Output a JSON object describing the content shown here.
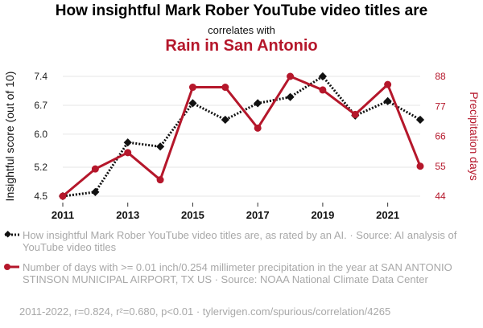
{
  "header": {
    "title": "How insightful Mark Rober YouTube video titles are",
    "subtitle": "correlates with",
    "title2": "Rain in San Antonio"
  },
  "colors": {
    "series1": "#111111",
    "series2": "#b5172b",
    "grid": "#e6e6e6"
  },
  "chart_data": {
    "type": "line",
    "x": [
      2011,
      2012,
      2013,
      2014,
      2015,
      2016,
      2017,
      2018,
      2019,
      2020,
      2021,
      2022
    ],
    "x_ticks": [
      "2011",
      "2013",
      "2015",
      "2017",
      "2019",
      "2021"
    ],
    "left_axis": {
      "label": "Insightful score (out of 10)",
      "ticks": [
        "4.5",
        "5.2",
        "6.0",
        "6.7",
        "7.4"
      ],
      "range": [
        4.5,
        7.4
      ]
    },
    "right_axis": {
      "label": "Precipitation days",
      "ticks": [
        "44",
        "55",
        "66",
        "77",
        "88"
      ],
      "range": [
        44,
        88
      ]
    },
    "grid": true,
    "series": [
      {
        "axis": "left",
        "style": "dotted",
        "marker": "diamond",
        "values": [
          4.5,
          4.6,
          5.8,
          5.7,
          6.75,
          6.35,
          6.75,
          6.9,
          7.4,
          6.45,
          6.8,
          6.35
        ]
      },
      {
        "axis": "right",
        "style": "solid",
        "marker": "circle",
        "values": [
          44,
          54,
          60,
          50,
          84,
          84,
          69,
          88,
          83,
          74,
          85,
          55
        ]
      }
    ]
  },
  "legend": [
    {
      "text": "How insightful Mark Rober YouTube video titles are, as rated by an AI. · Source: AI analysis of YouTube video titles"
    },
    {
      "text": "Number of days with >= 0.01 inch/0.254 millimeter precipitation in the year at SAN ANTONIO STINSON MUNICIPAL AIRPORT, TX US · Source: NOAA National Climate Data Center"
    }
  ],
  "footer": "2011-2022, r=0.824, r²=0.680, p<0.01 · tylervigen.com/spurious/correlation/4265"
}
